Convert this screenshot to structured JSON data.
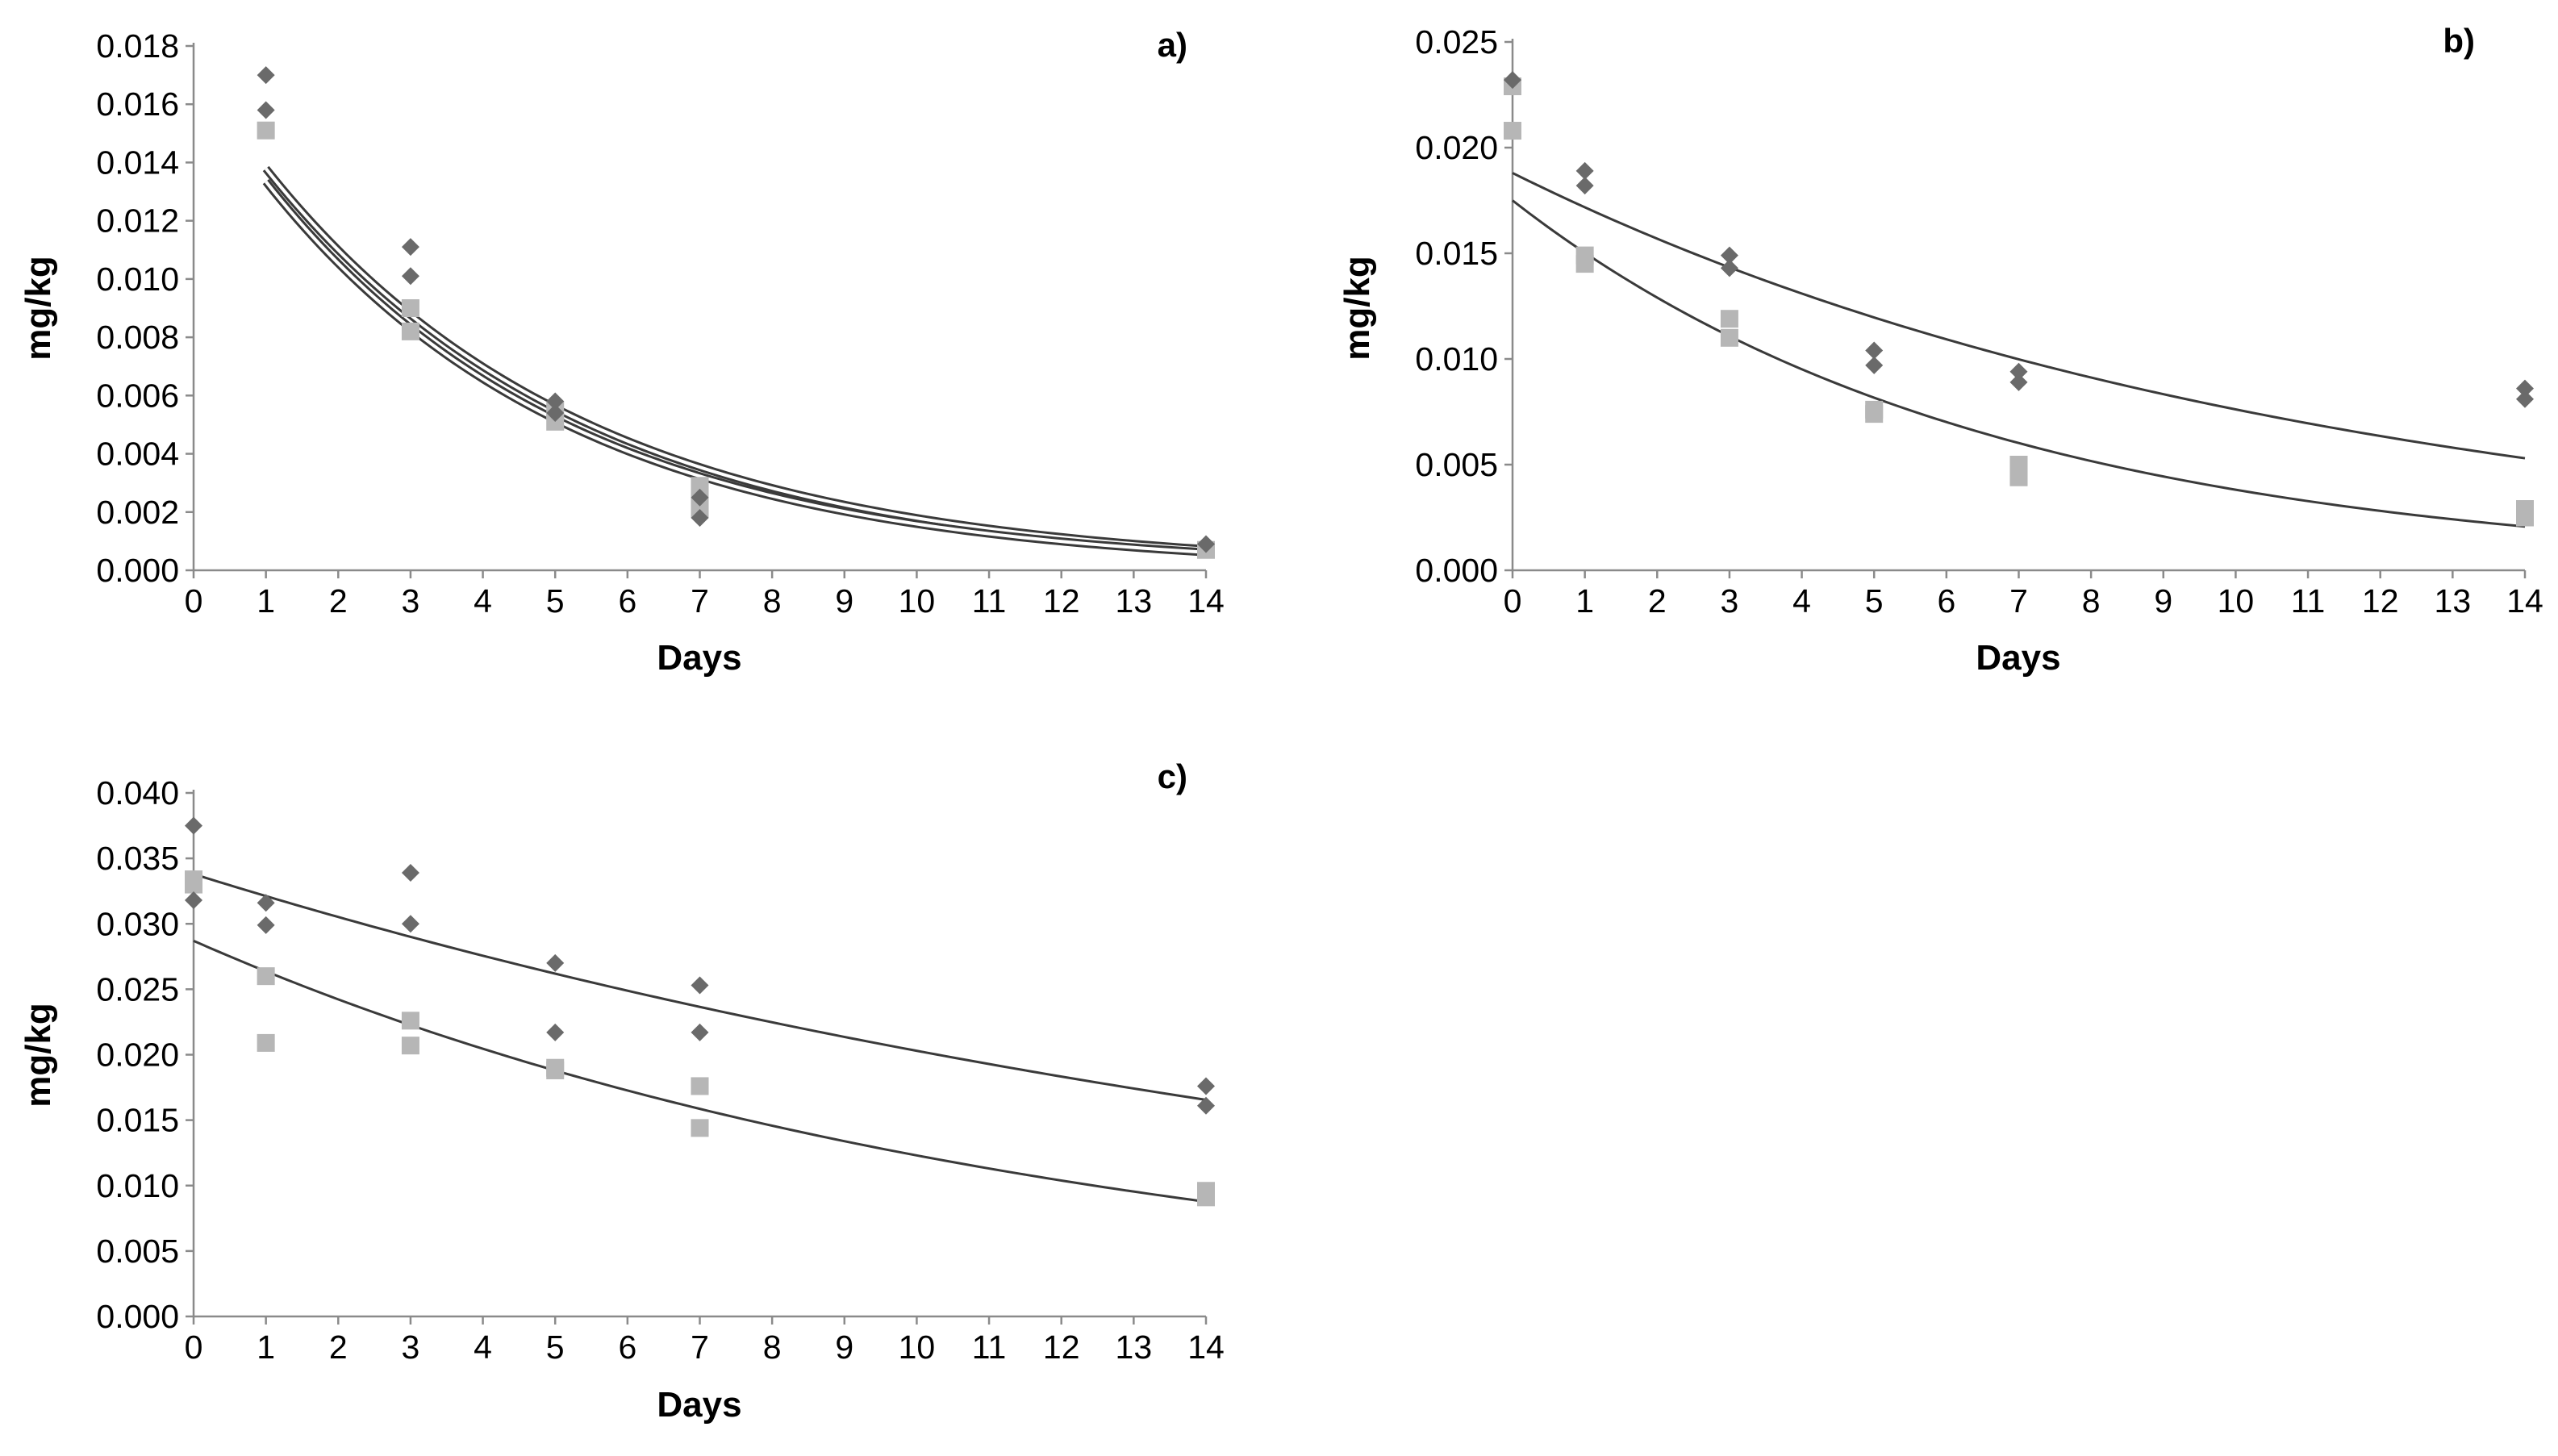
{
  "colors": {
    "series_diamond": "#6a6a6a",
    "series_square": "#b6b6b6",
    "fit_line": "#3a3a3a",
    "axis": "#8a8a8a",
    "background": "#ffffff"
  },
  "chart_data": [
    {
      "type": "scatter",
      "panel_label": "a)",
      "xlabel": "Days",
      "ylabel": "mg/kg",
      "xlim": [
        0,
        14
      ],
      "ylim": [
        0,
        0.018
      ],
      "xticks": [
        "0",
        "1",
        "2",
        "3",
        "4",
        "5",
        "6",
        "7",
        "8",
        "9",
        "10",
        "11",
        "12",
        "13",
        "14"
      ],
      "yticks": [
        "0.000",
        "0.002",
        "0.004",
        "0.006",
        "0.008",
        "0.010",
        "0.012",
        "0.014",
        "0.016",
        "0.018"
      ],
      "series": [
        {
          "name": "diamonds",
          "marker": "diamond",
          "points": [
            [
              1,
              0.017
            ],
            [
              1,
              0.0158
            ],
            [
              3,
              0.0111
            ],
            [
              3,
              0.0101
            ],
            [
              5,
              0.0058
            ],
            [
              5,
              0.0054
            ],
            [
              7,
              0.0025
            ],
            [
              7,
              0.0018
            ],
            [
              14,
              0.0009
            ]
          ],
          "fit": {
            "model": "exp",
            "a": 0.0173,
            "k": 0.2266,
            "x_range": [
              1,
              14
            ]
          }
        },
        {
          "name": "squares",
          "marker": "square",
          "points": [
            [
              1,
              0.0151
            ],
            [
              3,
              0.009
            ],
            [
              3,
              0.0082
            ],
            [
              5,
              0.0055
            ],
            [
              5,
              0.0051
            ],
            [
              7,
              0.0029
            ],
            [
              7,
              0.0025
            ],
            [
              7,
              0.0021
            ],
            [
              14,
              0.0007
            ]
          ],
          "fit": {
            "model": "exp",
            "a": 0.0169,
            "k": 0.2363,
            "x_range": [
              1,
              14
            ]
          }
        }
      ],
      "fit_style": "double"
    },
    {
      "type": "scatter",
      "panel_label": "b)",
      "xlabel": "Days",
      "ylabel": "mg/kg",
      "xlim": [
        0,
        14
      ],
      "ylim": [
        0,
        0.025
      ],
      "xticks": [
        "0",
        "1",
        "2",
        "3",
        "4",
        "5",
        "6",
        "7",
        "8",
        "9",
        "10",
        "11",
        "12",
        "13",
        "14"
      ],
      "yticks": [
        "0.000",
        "0.005",
        "0.010",
        "0.015",
        "0.020",
        "0.025"
      ],
      "series": [
        {
          "name": "diamonds",
          "marker": "diamond",
          "points": [
            [
              0,
              0.0232
            ],
            [
              1,
              0.0189
            ],
            [
              1,
              0.0182
            ],
            [
              3,
              0.0149
            ],
            [
              3,
              0.0143
            ],
            [
              5,
              0.0104
            ],
            [
              5,
              0.0097
            ],
            [
              7,
              0.0094
            ],
            [
              7,
              0.0089
            ],
            [
              14,
              0.0086
            ],
            [
              14,
              0.0081
            ]
          ],
          "fit": {
            "model": "exp",
            "a": 0.0188,
            "k": 0.0904,
            "x_range": [
              0,
              14
            ]
          }
        },
        {
          "name": "squares",
          "marker": "square",
          "points": [
            [
              0,
              0.0229
            ],
            [
              0,
              0.0208
            ],
            [
              1,
              0.0149
            ],
            [
              1,
              0.0145
            ],
            [
              3,
              0.0119
            ],
            [
              3,
              0.011
            ],
            [
              5,
              0.0076
            ],
            [
              5,
              0.0074
            ],
            [
              7,
              0.005
            ],
            [
              7,
              0.0044
            ],
            [
              14,
              0.0029
            ],
            [
              14,
              0.0025
            ]
          ],
          "fit": {
            "model": "exp",
            "a": 0.0175,
            "k": 0.1524,
            "x_range": [
              0,
              14
            ]
          }
        }
      ],
      "fit_style": "single"
    },
    {
      "type": "scatter",
      "panel_label": "c)",
      "xlabel": "Days",
      "ylabel": "mg/kg",
      "xlim": [
        0,
        14
      ],
      "ylim": [
        0,
        0.04
      ],
      "xticks": [
        "0",
        "1",
        "2",
        "3",
        "4",
        "5",
        "6",
        "7",
        "8",
        "9",
        "10",
        "11",
        "12",
        "13",
        "14"
      ],
      "yticks": [
        "0.000",
        "0.005",
        "0.010",
        "0.015",
        "0.020",
        "0.025",
        "0.030",
        "0.035",
        "0.040"
      ],
      "series": [
        {
          "name": "diamonds",
          "marker": "diamond",
          "points": [
            [
              0,
              0.0375
            ],
            [
              0,
              0.0318
            ],
            [
              1,
              0.0316
            ],
            [
              1,
              0.0299
            ],
            [
              3,
              0.0339
            ],
            [
              3,
              0.03
            ],
            [
              5,
              0.027
            ],
            [
              5,
              0.0217
            ],
            [
              7,
              0.0253
            ],
            [
              7,
              0.0217
            ],
            [
              14,
              0.0176
            ],
            [
              14,
              0.0161
            ]
          ],
          "fit": {
            "model": "exp",
            "a": 0.0338,
            "k": 0.051,
            "x_range": [
              0,
              14
            ]
          }
        },
        {
          "name": "squares",
          "marker": "square",
          "points": [
            [
              0,
              0.0334
            ],
            [
              0,
              0.033
            ],
            [
              1,
              0.026
            ],
            [
              1,
              0.0209
            ],
            [
              3,
              0.0226
            ],
            [
              3,
              0.0207
            ],
            [
              5,
              0.019
            ],
            [
              5,
              0.0188
            ],
            [
              7,
              0.0176
            ],
            [
              7,
              0.0144
            ],
            [
              14,
              0.0096
            ],
            [
              14,
              0.0091
            ]
          ],
          "fit": {
            "model": "exp",
            "a": 0.0287,
            "k": 0.0847,
            "x_range": [
              0,
              14
            ]
          }
        }
      ],
      "fit_style": "single"
    }
  ]
}
